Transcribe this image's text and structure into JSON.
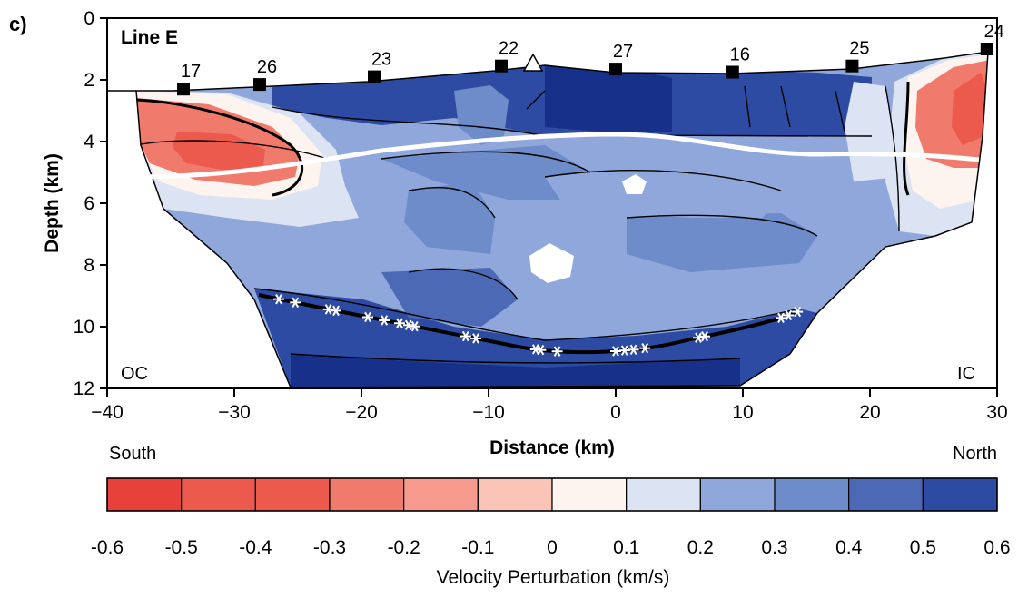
{
  "panel_label": "c)",
  "line_label": "Line E",
  "region_labels": {
    "left_inside": "OC",
    "right_inside": "IC",
    "left_below": "South",
    "right_below": "North"
  },
  "colors": {
    "reds": [
      "#e8413c",
      "#ec5a4e",
      "#f07a6c",
      "#f59a8c",
      "#f9c3b6"
    ],
    "blues": [
      "#fdf4ef",
      "#dce3f3",
      "#8fa7da",
      "#6d8cc9",
      "#4b69b5",
      "#2d4ba2",
      "#17318a",
      "#0f2370"
    ],
    "contour_line": "#000000",
    "interface_line": "#ffffff",
    "event_marker": "#ffffff"
  },
  "chart_data": {
    "type": "heatmap",
    "title": "",
    "xlabel": "Distance (km)",
    "ylabel": "Depth (km)",
    "xlim": [
      -40,
      30
    ],
    "ylim": [
      12,
      0
    ],
    "x_ticks": [
      "-40",
      "-30",
      "-20",
      "-10",
      "0",
      "10",
      "20",
      "30"
    ],
    "y_ticks": [
      "0",
      "2",
      "4",
      "6",
      "8",
      "10",
      "12"
    ],
    "stations": [
      {
        "id": "17",
        "x": -34.0,
        "depth": 2.3
      },
      {
        "id": "26",
        "x": -28.0,
        "depth": 2.15
      },
      {
        "id": "23",
        "x": -19.0,
        "depth": 1.9
      },
      {
        "id": "22",
        "x": -9.0,
        "depth": 1.55
      },
      {
        "id": "27",
        "x": 0.0,
        "depth": 1.65
      },
      {
        "id": "16",
        "x": 9.2,
        "depth": 1.75
      },
      {
        "id": "25",
        "x": 18.6,
        "depth": 1.55
      },
      {
        "id": "24",
        "x": 29.2,
        "depth": 1.0
      }
    ],
    "triangle_marker": {
      "x": -6.5,
      "depth": 1.5
    },
    "seismicity_x": [
      -26.5,
      -25.2,
      -22.6,
      -22.0,
      -19.5,
      -18.2,
      -17.0,
      -16.3,
      -15.8,
      -11.8,
      -11.0,
      -6.3,
      -5.9,
      -4.6,
      0.0,
      0.7,
      1.4,
      2.3,
      6.5,
      7.0,
      13.0,
      13.6,
      14.3
    ],
    "colorbar": {
      "label": "Velocity Perturbation (km/s)",
      "ticks": [
        "-0.6",
        "-0.5",
        "-0.4",
        "-0.3",
        "-0.2",
        "-0.1",
        "0",
        "0.1",
        "0.2",
        "0.3",
        "0.4",
        "0.5",
        "0.6"
      ],
      "min": -0.6,
      "max": 0.6,
      "bins": 12
    }
  }
}
